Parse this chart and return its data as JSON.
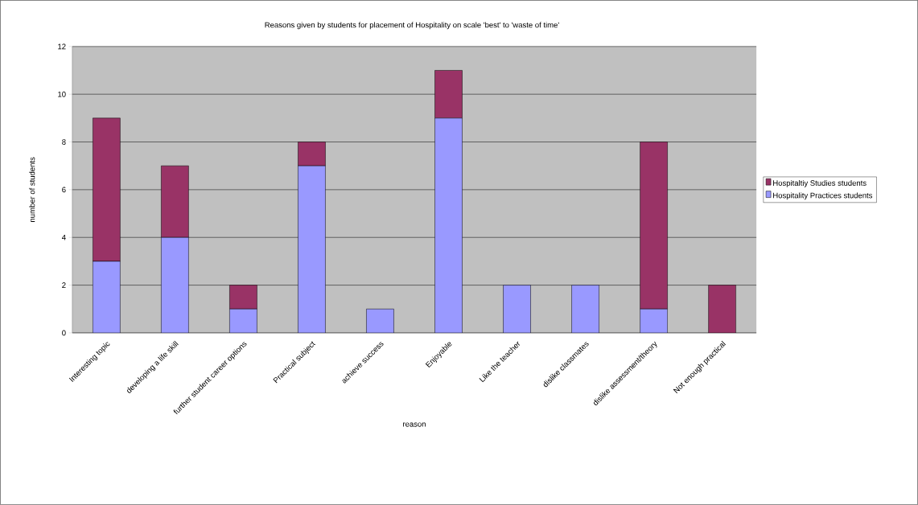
{
  "chart_data": {
    "type": "bar",
    "stacked": true,
    "title": "Reasons given by students for placement of Hospitality on scale 'best' to 'waste of time'",
    "xlabel": "reason",
    "ylabel": "number of students",
    "categories": [
      "Interesting topic",
      "developing a life skill",
      "further student career options",
      "Practical subject",
      "achieve success",
      "Enjoyable",
      "Like the teacher",
      "dislike classmates",
      "dislike assessment/theory",
      "Not enough practical"
    ],
    "series": [
      {
        "name": "Hospitality Practices students",
        "color": "#9999ff",
        "values": [
          3,
          4,
          1,
          7,
          1,
          9,
          2,
          2,
          1,
          0
        ]
      },
      {
        "name": "Hospitaltiy Studies students",
        "color": "#993366",
        "values": [
          6,
          3,
          1,
          1,
          0,
          2,
          0,
          0,
          7,
          2
        ]
      }
    ],
    "ylim": [
      0,
      12
    ],
    "yticks": [
      0,
      2,
      4,
      6,
      8,
      10,
      12
    ],
    "grid": "y",
    "legend": "right"
  }
}
